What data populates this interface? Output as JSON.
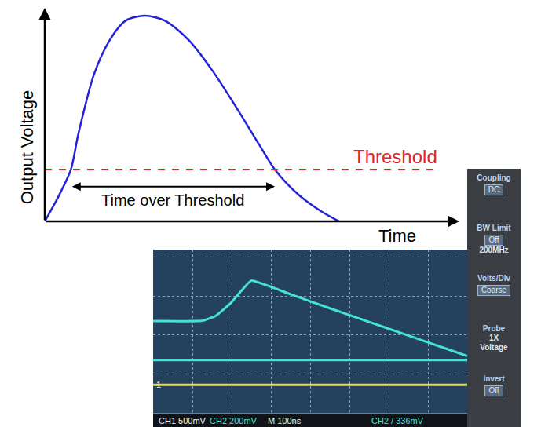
{
  "chart_data": [
    {
      "type": "line",
      "x_label": "Time",
      "y_label": "Output Voltage",
      "tick_labels": false,
      "grid": false,
      "xlim": [
        0,
        10
      ],
      "ylim": [
        0,
        10
      ],
      "x": [
        0,
        0.34,
        0.63,
        0.81,
        1.19,
        1.57,
        1.95,
        2.42,
        2.9,
        3.47,
        4.03,
        4.6,
        5.17,
        5.55,
        6.12,
        6.69,
        7.1
      ],
      "series": [
        {
          "color": "#2323d8",
          "line_style": "solid",
          "values": [
            0,
            1.2,
            2.43,
            4.1,
            6.9,
            8.5,
            9.4,
            9.63,
            9.4,
            8.5,
            7.1,
            5.4,
            3.6,
            2.43,
            1.25,
            0.44,
            0
          ]
        },
        {
          "name": "Threshold",
          "color": "#e8202a",
          "line_style": "dashed",
          "x": [
            0,
            9.5
          ],
          "values": [
            2.43,
            2.43
          ]
        }
      ],
      "annotations": [
        {
          "text": "Time over Threshold"
        }
      ]
    },
    {
      "type": "line",
      "tick_labels": false,
      "grid": true,
      "xlim": [
        0,
        8
      ],
      "ylim": [
        0,
        4.2
      ],
      "xticks": [
        0,
        1,
        2,
        3,
        4,
        5,
        6,
        7,
        8
      ],
      "yticks": [
        0,
        1,
        2,
        3,
        4
      ],
      "x": [
        0,
        1.1,
        1.3,
        1.6,
        2.0,
        2.3,
        2.5,
        3.5,
        4.5,
        5.5,
        6.5,
        7.5,
        8
      ],
      "series": [
        {
          "color": "#43e3d6",
          "line_style": "solid",
          "values": [
            2.36,
            2.36,
            2.38,
            2.5,
            2.85,
            3.2,
            3.4,
            3.05,
            2.69,
            2.34,
            1.99,
            1.64,
            1.46
          ]
        },
        {
          "color": "#43e3d6",
          "line_style": "solid",
          "values": [
            1.36,
            1.36,
            1.36,
            1.36,
            1.36,
            1.36,
            1.36,
            1.36,
            1.36,
            1.36,
            1.36,
            1.36,
            1.36
          ]
        },
        {
          "color": "#e6e04a",
          "line_style": "solid",
          "values": [
            0.72,
            0.72,
            0.72,
            0.72,
            0.72,
            0.72,
            0.72,
            0.72,
            0.72,
            0.72,
            0.72,
            0.72,
            0.72
          ]
        }
      ],
      "annotations": [
        {
          "text": "1"
        }
      ]
    }
  ],
  "scope_status": [
    {
      "text": "CH1 500mV",
      "color": "#f2f2f2"
    },
    {
      "text": "CH2 200mV",
      "color": "#43e3d6"
    },
    {
      "text": "M 100ns",
      "color": "#f2f2f2"
    },
    {
      "text": "CH2 / 336mV",
      "color": "#43e3d6"
    }
  ],
  "scope_menu": [
    {
      "label": "Coupling",
      "value": "DC",
      "boxed": true
    },
    {
      "label": "BW Limit",
      "value": "Off",
      "boxed": true,
      "note": "200MHz"
    },
    {
      "label": "Volts/Div",
      "value": "Coarse",
      "boxed": true
    },
    {
      "label": "Probe",
      "value": "1X",
      "boxed": false,
      "note": "Voltage"
    },
    {
      "label": "Invert",
      "value": "Off",
      "boxed": true
    }
  ]
}
